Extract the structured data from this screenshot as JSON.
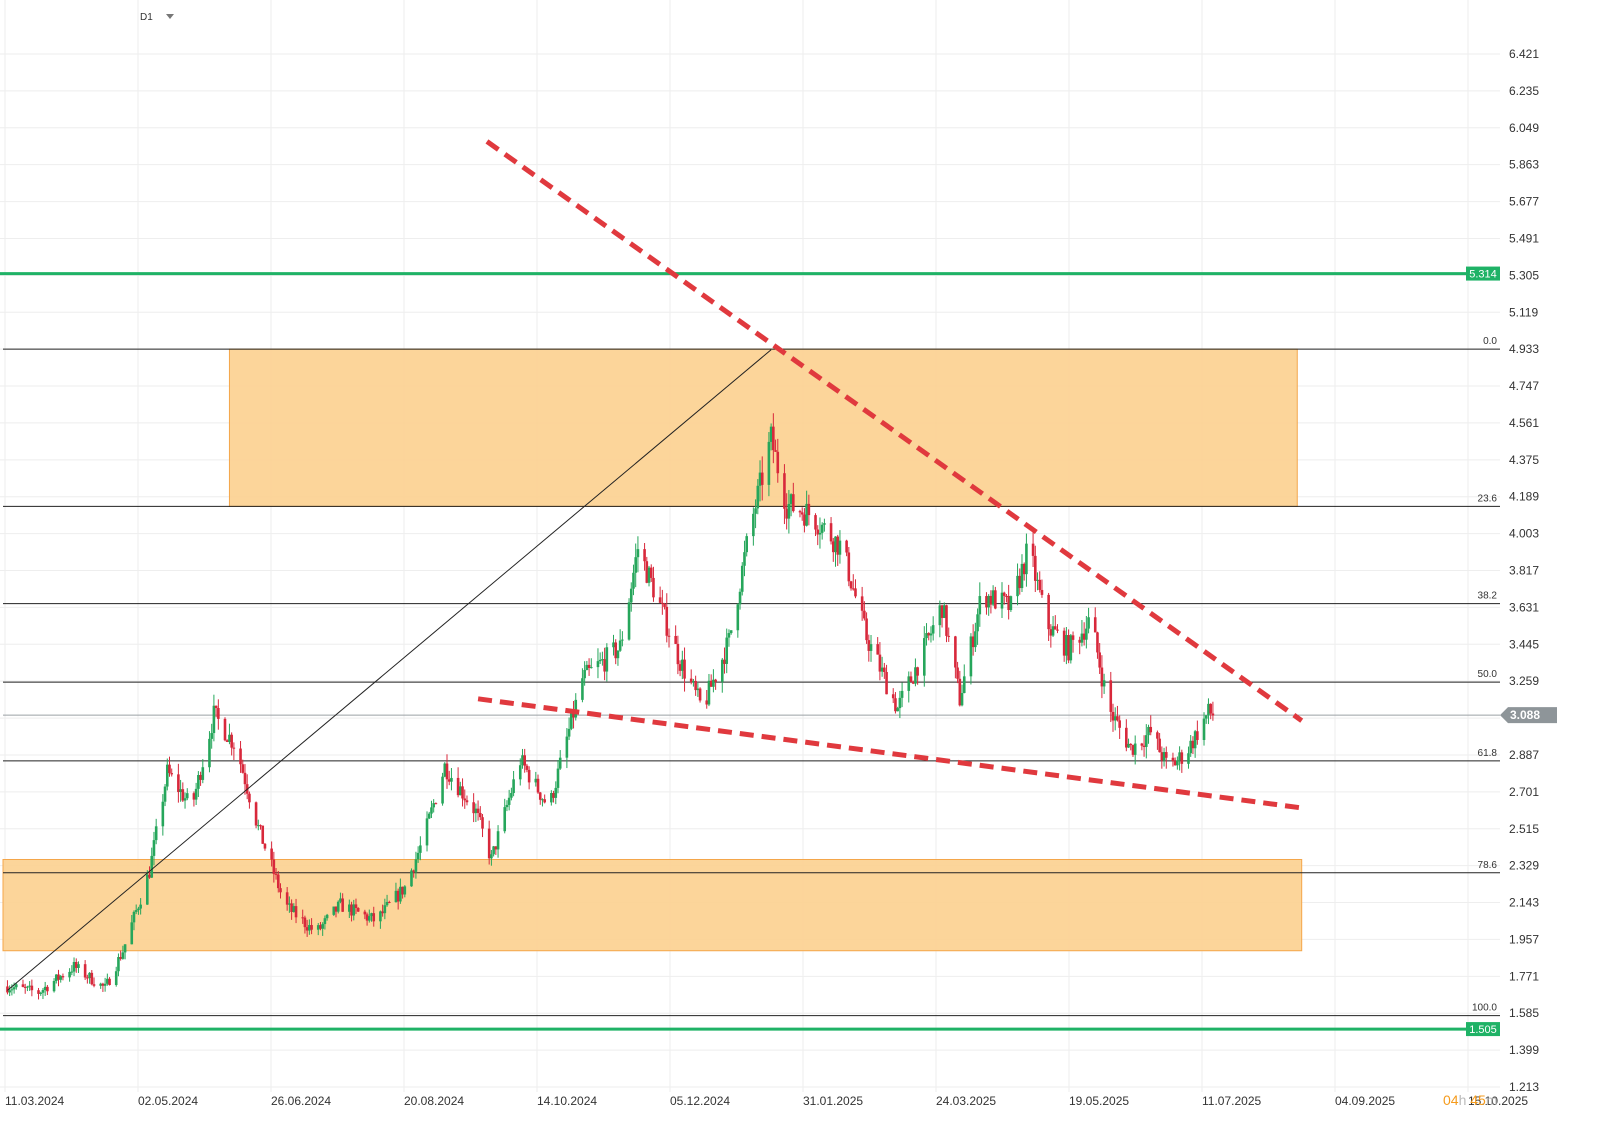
{
  "toolbar": {
    "timeframe": "D1"
  },
  "countdown": {
    "hours": "04",
    "h_unit": "h",
    "minutes": "45",
    "m_unit": "m"
  },
  "colors": {
    "bull": "#26a65b",
    "bear": "#d8283b",
    "zone_fill": "#fcd08f",
    "zone_stroke": "#f4a64a",
    "trend": "#e0393e",
    "support": "#1fb266",
    "fib": "#222222",
    "price_tag": "#8e9599"
  },
  "chart_data": {
    "type": "candlestick",
    "timeframe": "D1",
    "x_range": [
      "2024-03-11",
      "2025-10-15"
    ],
    "xlim_date_start": "2024-03-09",
    "ylim": [
      1.213,
      6.514
    ],
    "y_ticks": [
      "6.421",
      "6.235",
      "6.049",
      "5.863",
      "5.677",
      "5.491",
      "5.305",
      "5.119",
      "4.933",
      "4.747",
      "4.561",
      "4.375",
      "4.189",
      "4.003",
      "3.817",
      "3.631",
      "3.445",
      "3.259",
      "3.073",
      "2.887",
      "2.701",
      "2.515",
      "2.329",
      "2.143",
      "1.957",
      "1.771",
      "1.585",
      "1.399",
      "1.213"
    ],
    "x_ticks": [
      "11.03.2024",
      "02.05.2024",
      "26.06.2024",
      "20.08.2024",
      "14.10.2024",
      "05.12.2024",
      "31.01.2025",
      "24.03.2025",
      "19.05.2025",
      "11.07.2025",
      "04.09.2025",
      "15.10.2025"
    ],
    "current_price": "3.088",
    "horizontal_levels": [
      {
        "name": "resistance",
        "value": 5.314,
        "label": "5.314"
      },
      {
        "name": "support",
        "value": 1.505,
        "label": "1.505"
      }
    ],
    "fibonacci": [
      {
        "level": "0.0",
        "value": 4.933
      },
      {
        "level": "23.6",
        "value": 4.14
      },
      {
        "level": "38.2",
        "value": 3.65
      },
      {
        "level": "50.0",
        "value": 3.254
      },
      {
        "level": "61.8",
        "value": 2.857
      },
      {
        "level": "78.6",
        "value": 2.293
      },
      {
        "level": "100.0",
        "value": 1.573
      }
    ],
    "zones": [
      {
        "name": "upper-zone",
        "from_date": "2024-06-19",
        "to": "2025-10-13",
        "top": 4.933,
        "bottom": 4.14
      },
      {
        "name": "lower-zone",
        "from_date": "2024-03-09",
        "to": "2025-10-15",
        "top": 2.36,
        "bottom": 1.9
      }
    ],
    "trendlines": [
      {
        "name": "upper-trendline",
        "style": "dashed",
        "start": [
          "2024-10-13",
          5.98
        ],
        "end": [
          "2025-10-15",
          3.06
        ]
      },
      {
        "name": "lower-trendline",
        "style": "dashed",
        "start": [
          "2024-10-09",
          3.17
        ],
        "end": [
          "2025-10-15",
          2.62
        ]
      },
      {
        "name": "fib-diagonal",
        "style": "solid",
        "start": [
          "2024-03-11",
          1.7
        ],
        "end": [
          "2025-02-18",
          4.93
        ]
      }
    ],
    "price_anchors": [
      [
        "2024-03-11",
        1.72
      ],
      [
        "2024-03-25",
        1.69
      ],
      [
        "2024-04-10",
        1.82
      ],
      [
        "2024-04-24",
        1.71
      ],
      [
        "2024-05-02",
        1.9
      ],
      [
        "2024-05-14",
        2.3
      ],
      [
        "2024-05-22",
        2.8
      ],
      [
        "2024-06-02",
        2.62
      ],
      [
        "2024-06-12",
        3.09
      ],
      [
        "2024-06-22",
        2.93
      ],
      [
        "2024-07-02",
        2.52
      ],
      [
        "2024-07-14",
        2.13
      ],
      [
        "2024-07-28",
        1.99
      ],
      [
        "2024-08-08",
        2.13
      ],
      [
        "2024-08-24",
        2.05
      ],
      [
        "2024-09-06",
        2.22
      ],
      [
        "2024-09-14",
        2.45
      ],
      [
        "2024-09-24",
        2.83
      ],
      [
        "2024-10-08",
        2.6
      ],
      [
        "2024-10-15",
        2.36
      ],
      [
        "2024-10-28",
        2.86
      ],
      [
        "2024-11-10",
        2.62
      ],
      [
        "2024-11-25",
        3.27
      ],
      [
        "2024-12-12",
        3.43
      ],
      [
        "2024-12-20",
        3.93
      ],
      [
        "2024-12-28",
        3.7
      ],
      [
        "2025-01-08",
        3.36
      ],
      [
        "2025-01-18",
        3.12
      ],
      [
        "2025-01-30",
        3.46
      ],
      [
        "2025-02-08",
        4.0
      ],
      [
        "2025-02-18",
        4.48
      ],
      [
        "2025-02-25",
        4.15
      ],
      [
        "2025-03-08",
        4.1
      ],
      [
        "2025-03-22",
        3.93
      ],
      [
        "2025-04-02",
        3.48
      ],
      [
        "2025-04-16",
        3.12
      ],
      [
        "2025-04-28",
        3.42
      ],
      [
        "2025-05-06",
        3.64
      ],
      [
        "2025-05-14",
        3.17
      ],
      [
        "2025-05-24",
        3.7
      ],
      [
        "2025-06-06",
        3.63
      ],
      [
        "2025-06-14",
        3.93
      ],
      [
        "2025-06-22",
        3.55
      ],
      [
        "2025-07-02",
        3.42
      ],
      [
        "2025-07-12",
        3.57
      ],
      [
        "2025-07-20",
        3.12
      ],
      [
        "2025-07-30",
        2.92
      ],
      [
        "2025-08-08",
        3.0
      ],
      [
        "2025-08-16",
        2.82
      ],
      [
        "2025-08-24",
        2.9
      ],
      [
        "2025-09-03",
        3.1
      ],
      [
        "2025-09-06",
        3.088
      ]
    ]
  }
}
